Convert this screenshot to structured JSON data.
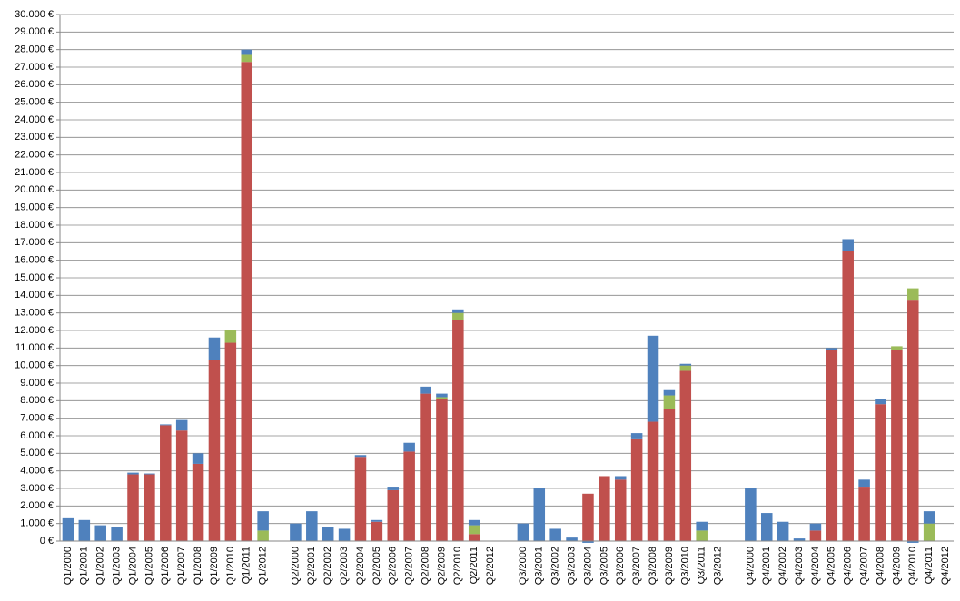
{
  "chart_data": {
    "type": "stacked-bar",
    "categories": [
      "Q1/2000",
      "Q1/2001",
      "Q1/2002",
      "Q1/2003",
      "Q1/2004",
      "Q1/2005",
      "Q1/2006",
      "Q1/2007",
      "Q1/2008",
      "Q1/2009",
      "Q1/2010",
      "Q1/2011",
      "Q1/2012",
      null,
      "Q2/2000",
      "Q2/2001",
      "Q2/2002",
      "Q2/2003",
      "Q2/2004",
      "Q2/2005",
      "Q2/2006",
      "Q2/2007",
      "Q2/2008",
      "Q2/2009",
      "Q2/2010",
      "Q2/2011",
      "Q2/2012",
      null,
      "Q3/2000",
      "Q3/2001",
      "Q3/2002",
      "Q3/2003",
      "Q3/2004",
      "Q3/2005",
      "Q3/2006",
      "Q3/2007",
      "Q3/2008",
      "Q3/2009",
      "Q3/2010",
      "Q3/2011",
      "Q3/2012",
      null,
      "Q4/2000",
      "Q4/2001",
      "Q4/2002",
      "Q4/2003",
      "Q4/2004",
      "Q4/2005",
      "Q4/2006",
      "Q4/2007",
      "Q4/2008",
      "Q4/2009",
      "Q4/2010",
      "Q4/2011",
      "Q4/2012"
    ],
    "series": [
      {
        "color": "#c0504d",
        "values": [
          0,
          0,
          0,
          0,
          3800,
          3800,
          6600,
          6300,
          4400,
          10300,
          11300,
          27300,
          0,
          null,
          0,
          0,
          0,
          0,
          4800,
          1100,
          2900,
          5100,
          8400,
          8100,
          12600,
          400,
          0,
          null,
          0,
          0,
          0,
          0,
          2700,
          3700,
          3500,
          5800,
          6800,
          7500,
          9700,
          0,
          0,
          null,
          0,
          0,
          0,
          0,
          600,
          10900,
          16500,
          3100,
          7800,
          10900,
          13700,
          0,
          0
        ]
      },
      {
        "color": "#9bbb59",
        "values": [
          0,
          0,
          0,
          0,
          0,
          0,
          0,
          0,
          0,
          0,
          700,
          400,
          600,
          null,
          0,
          0,
          0,
          0,
          0,
          0,
          0,
          0,
          0,
          100,
          400,
          500,
          0,
          null,
          0,
          0,
          0,
          0,
          0,
          0,
          0,
          0,
          0,
          800,
          300,
          600,
          0,
          null,
          0,
          0,
          0,
          0,
          0,
          0,
          0,
          0,
          0,
          200,
          700,
          1000,
          0
        ]
      },
      {
        "color": "#4f81bd",
        "values": [
          1300,
          1200,
          900,
          800,
          100,
          50,
          50,
          600,
          600,
          1300,
          0,
          300,
          1100,
          null,
          1000,
          1700,
          800,
          700,
          100,
          100,
          200,
          500,
          400,
          200,
          200,
          300,
          0,
          null,
          1000,
          3000,
          700,
          200,
          -100,
          0,
          200,
          350,
          4900,
          300,
          100,
          500,
          0,
          null,
          3000,
          1600,
          1100,
          150,
          400,
          100,
          700,
          400,
          300,
          0,
          -100,
          700,
          0
        ]
      }
    ],
    "ylim": [
      0,
      30000
    ],
    "yticks": [
      {
        "value": 0,
        "label": "0 €"
      },
      {
        "value": 1000,
        "label": "1.000 €"
      },
      {
        "value": 2000,
        "label": "2.000 €"
      },
      {
        "value": 3000,
        "label": "3.000 €"
      },
      {
        "value": 4000,
        "label": "4.000 €"
      },
      {
        "value": 5000,
        "label": "5.000 €"
      },
      {
        "value": 6000,
        "label": "6.000 €"
      },
      {
        "value": 7000,
        "label": "7.000 €"
      },
      {
        "value": 8000,
        "label": "8.000 €"
      },
      {
        "value": 9000,
        "label": "9.000 €"
      },
      {
        "value": 10000,
        "label": "10.000 €"
      },
      {
        "value": 11000,
        "label": "11.000 €"
      },
      {
        "value": 12000,
        "label": "12.000 €"
      },
      {
        "value": 13000,
        "label": "13.000 €"
      },
      {
        "value": 14000,
        "label": "14.000 €"
      },
      {
        "value": 15000,
        "label": "15.000 €"
      },
      {
        "value": 16000,
        "label": "16.000 €"
      },
      {
        "value": 17000,
        "label": "17.000 €"
      },
      {
        "value": 18000,
        "label": "18.000 €"
      },
      {
        "value": 19000,
        "label": "19.000 €"
      },
      {
        "value": 20000,
        "label": "20.000 €"
      },
      {
        "value": 21000,
        "label": "21.000 €"
      },
      {
        "value": 22000,
        "label": "22.000 €"
      },
      {
        "value": 23000,
        "label": "23.000 €"
      },
      {
        "value": 24000,
        "label": "24.000 €"
      },
      {
        "value": 25000,
        "label": "25.000 €"
      },
      {
        "value": 26000,
        "label": "26.000 €"
      },
      {
        "value": 27000,
        "label": "27.000 €"
      },
      {
        "value": 28000,
        "label": "28.000 €"
      },
      {
        "value": 29000,
        "label": "29.000 €"
      },
      {
        "value": 30000,
        "label": "30.000 €"
      }
    ],
    "grid": true
  }
}
